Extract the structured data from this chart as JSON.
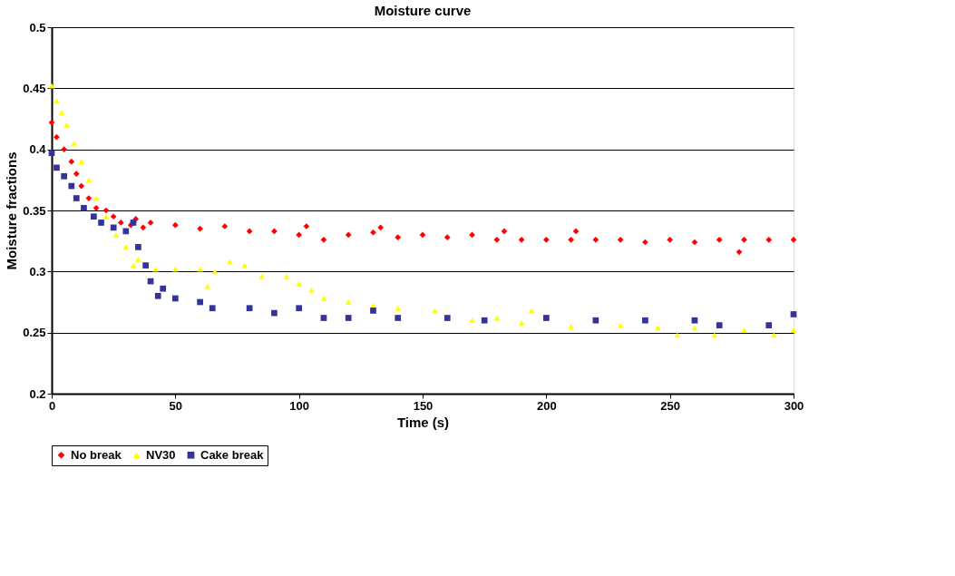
{
  "chart_data": {
    "type": "scatter",
    "title": "Moisture curve",
    "xlabel": "Time (s)",
    "ylabel": "Moisture fractions",
    "xlim": [
      0,
      300
    ],
    "xticks": [
      0,
      50,
      100,
      150,
      200,
      250,
      300
    ],
    "ylim": [
      0.2,
      0.5
    ],
    "yticks": [
      0.2,
      0.25,
      0.3,
      0.35,
      0.4,
      0.45,
      0.5
    ],
    "grid": "y",
    "legend": "bottom",
    "series": [
      {
        "name": "No break",
        "color": "#ff0000",
        "marker": "diamond",
        "x": [
          0,
          2,
          5,
          8,
          10,
          12,
          15,
          18,
          22,
          25,
          28,
          32,
          34,
          37,
          40,
          50,
          60,
          70,
          80,
          90,
          100,
          103,
          110,
          120,
          130,
          133,
          140,
          150,
          160,
          170,
          180,
          183,
          190,
          200,
          210,
          212,
          220,
          230,
          240,
          250,
          260,
          270,
          278,
          280,
          290,
          300
        ],
        "values": [
          0.422,
          0.41,
          0.4,
          0.39,
          0.38,
          0.37,
          0.36,
          0.352,
          0.35,
          0.345,
          0.34,
          0.338,
          0.343,
          0.336,
          0.34,
          0.338,
          0.335,
          0.337,
          0.333,
          0.333,
          0.33,
          0.337,
          0.326,
          0.33,
          0.332,
          0.336,
          0.328,
          0.33,
          0.328,
          0.33,
          0.326,
          0.333,
          0.326,
          0.326,
          0.326,
          0.333,
          0.326,
          0.326,
          0.324,
          0.326,
          0.324,
          0.326,
          0.316,
          0.326,
          0.326,
          0.326
        ]
      },
      {
        "name": "NV30",
        "color": "#ffff00",
        "marker": "triangle",
        "x": [
          0,
          2,
          4,
          6,
          9,
          12,
          15,
          18,
          22,
          26,
          30,
          33,
          35,
          42,
          50,
          60,
          63,
          66,
          72,
          78,
          85,
          95,
          100,
          105,
          110,
          120,
          130,
          140,
          155,
          170,
          180,
          190,
          194,
          210,
          230,
          245,
          253,
          260,
          268,
          280,
          292,
          300
        ],
        "values": [
          0.452,
          0.44,
          0.43,
          0.42,
          0.405,
          0.39,
          0.375,
          0.36,
          0.345,
          0.33,
          0.32,
          0.305,
          0.31,
          0.302,
          0.302,
          0.302,
          0.288,
          0.3,
          0.308,
          0.305,
          0.296,
          0.296,
          0.29,
          0.285,
          0.278,
          0.275,
          0.272,
          0.27,
          0.268,
          0.26,
          0.262,
          0.258,
          0.268,
          0.255,
          0.256,
          0.254,
          0.248,
          0.254,
          0.248,
          0.252,
          0.248,
          0.252
        ]
      },
      {
        "name": "Cake break",
        "color": "#333399",
        "marker": "square",
        "x": [
          0,
          2,
          5,
          8,
          10,
          13,
          17,
          20,
          25,
          30,
          33,
          35,
          38,
          40,
          43,
          45,
          50,
          60,
          65,
          80,
          90,
          100,
          110,
          120,
          130,
          140,
          160,
          175,
          200,
          220,
          240,
          260,
          270,
          290,
          300
        ],
        "values": [
          0.397,
          0.385,
          0.378,
          0.37,
          0.36,
          0.352,
          0.345,
          0.34,
          0.336,
          0.333,
          0.34,
          0.32,
          0.305,
          0.292,
          0.28,
          0.286,
          0.278,
          0.275,
          0.27,
          0.27,
          0.266,
          0.27,
          0.262,
          0.262,
          0.268,
          0.262,
          0.262,
          0.26,
          0.262,
          0.26,
          0.26,
          0.26,
          0.256,
          0.256,
          0.265
        ]
      }
    ]
  }
}
